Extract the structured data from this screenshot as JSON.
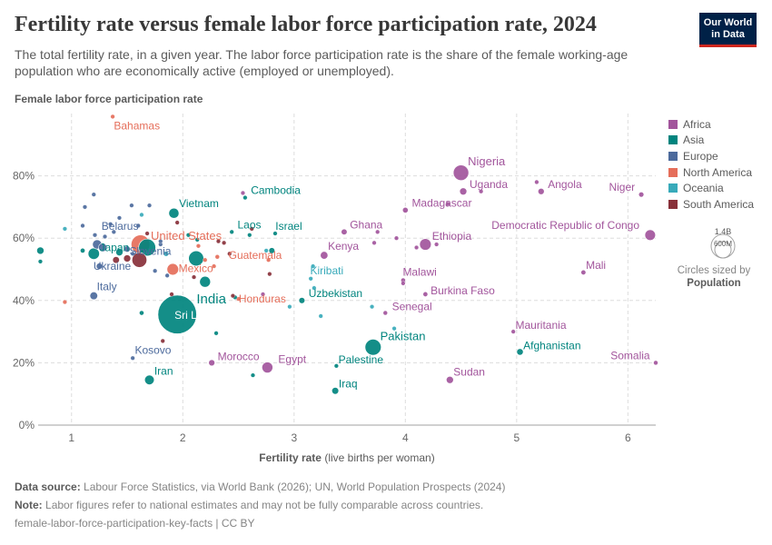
{
  "header": {
    "title": "Fertility rate versus female labor force participation rate, 2024",
    "subtitle": "The total fertility rate, in a given year. The labor force participation rate is the share of the female working-age population who are economically active (employed or unemployed).",
    "logo_line1": "Our World",
    "logo_line2": "in Data"
  },
  "legend": {
    "items": [
      {
        "label": "Africa",
        "color": "#a2559c"
      },
      {
        "label": "Asia",
        "color": "#00847e"
      },
      {
        "label": "Europe",
        "color": "#4c6a9c"
      },
      {
        "label": "North America",
        "color": "#e56e5a"
      },
      {
        "label": "Oceania",
        "color": "#38aaba"
      },
      {
        "label": "South America",
        "color": "#883039"
      }
    ],
    "size_max": "1.4B",
    "size_mid": "600M",
    "size_note": "Circles sized by",
    "size_variable": "Population"
  },
  "footer": {
    "source_label": "Data source:",
    "source": "Labour Force Statistics, via World Bank (2026); UN, World Population Prospects (2024)",
    "note_label": "Note:",
    "note": "Labor figures refer to national estimates and may not be fully comparable across countries.",
    "slug": "female-labor-force-participation-key-facts | CC BY"
  },
  "chart_data": {
    "type": "scatter",
    "xlabel": "Fertility rate (live births per woman)",
    "ylabel": "Female labor force participation rate",
    "xlim": [
      0.7,
      6.25
    ],
    "ylim": [
      0,
      100
    ],
    "xticks": [
      "1",
      "2",
      "3",
      "4",
      "5",
      "6"
    ],
    "yticks": [
      "0%",
      "20%",
      "40%",
      "60%",
      "80%"
    ],
    "grid": true,
    "legend_position": "right",
    "region_colors": {
      "Africa": "#a2559c",
      "Asia": "#00847e",
      "Europe": "#4c6a9c",
      "North America": "#e56e5a",
      "Oceania": "#38aaba",
      "South America": "#883039"
    },
    "points": [
      {
        "x": 1.37,
        "y": 99,
        "region": "North America",
        "label": "Bahamas",
        "pop": 0.4
      },
      {
        "x": 4.5,
        "y": 81,
        "region": "Africa",
        "label": "Nigeria",
        "pop": 230
      },
      {
        "x": 4.52,
        "y": 75,
        "region": "Africa",
        "label": "Uganda",
        "pop": 50
      },
      {
        "x": 5.22,
        "y": 75,
        "region": "Africa",
        "label": "Angola",
        "pop": 38
      },
      {
        "x": 6.12,
        "y": 74,
        "region": "Africa",
        "label": "Niger",
        "pop": 27
      },
      {
        "x": 2.56,
        "y": 73,
        "region": "Asia",
        "label": "Cambodia",
        "pop": 17
      },
      {
        "x": 4.0,
        "y": 69,
        "region": "Africa",
        "label": "Madagascar",
        "pop": 31
      },
      {
        "x": 1.92,
        "y": 68,
        "region": "Asia",
        "label": "Vietnam",
        "pop": 100
      },
      {
        "x": 6.2,
        "y": 61,
        "region": "Africa",
        "label": "Democratic Republic of Congo",
        "pop": 109
      },
      {
        "x": 1.21,
        "y": 61,
        "region": "Europe",
        "label": "Belarus",
        "pop": 9
      },
      {
        "x": 3.45,
        "y": 62,
        "region": "Africa",
        "label": "Ghana",
        "pop": 34
      },
      {
        "x": 2.44,
        "y": 62,
        "region": "Asia",
        "label": "Laos",
        "pop": 7.7
      },
      {
        "x": 2.83,
        "y": 61.5,
        "region": "Asia",
        "label": "Israel",
        "pop": 9.5
      },
      {
        "x": 4.18,
        "y": 58,
        "region": "Africa",
        "label": "Ethiopia",
        "pop": 130
      },
      {
        "x": 1.62,
        "y": 58,
        "region": "North America",
        "label": "United States",
        "pop": 340
      },
      {
        "x": 1.2,
        "y": 55,
        "region": "Asia",
        "label": "Japan",
        "pop": 124
      },
      {
        "x": 1.55,
        "y": 55,
        "region": "Europe",
        "label": "Slovenia",
        "pop": 2.1
      },
      {
        "x": 3.27,
        "y": 54.5,
        "region": "Africa",
        "label": "Kenya",
        "pop": 56
      },
      {
        "x": 2.31,
        "y": 54,
        "region": "North America",
        "label": "Guatemala",
        "pop": 18
      },
      {
        "x": 2.12,
        "y": 53.5,
        "region": "Asia",
        "pop": 220
      },
      {
        "x": 1.61,
        "y": 53,
        "region": "South America",
        "pop": 212
      },
      {
        "x": 5.6,
        "y": 49,
        "region": "Africa",
        "label": "Mali",
        "pop": 24
      },
      {
        "x": 1.25,
        "y": 51,
        "region": "Europe",
        "label": "Ukraine",
        "pop": 38
      },
      {
        "x": 1.91,
        "y": 50,
        "region": "North America",
        "label": "Mexico",
        "pop": 130
      },
      {
        "x": 3.15,
        "y": 47,
        "region": "Oceania",
        "label": "Kiribati",
        "pop": 0.13
      },
      {
        "x": 3.98,
        "y": 46.5,
        "region": "Africa",
        "label": "Malawi",
        "pop": 21
      },
      {
        "x": 1.2,
        "y": 41.5,
        "region": "Europe",
        "label": "Italy",
        "pop": 59
      },
      {
        "x": 4.18,
        "y": 42,
        "region": "Africa",
        "label": "Burkina Faso",
        "pop": 23
      },
      {
        "x": 2.5,
        "y": 40.5,
        "region": "North America",
        "label": "Honduras",
        "pop": 10.8
      },
      {
        "x": 3.07,
        "y": 40,
        "region": "Asia",
        "label": "Uzbekistan",
        "pop": 36
      },
      {
        "x": 1.95,
        "y": 35.5,
        "region": "Asia",
        "label": "India",
        "pop": 1440
      },
      {
        "x": 1.63,
        "y": 36,
        "region": "Asia",
        "label": "Sri Lanka",
        "pop": 22
      },
      {
        "x": 3.82,
        "y": 36,
        "region": "Africa",
        "label": "Senegal",
        "pop": 18
      },
      {
        "x": 4.97,
        "y": 30,
        "region": "Africa",
        "label": "Mauritania",
        "pop": 5
      },
      {
        "x": 3.71,
        "y": 25,
        "region": "Asia",
        "label": "Pakistan",
        "pop": 250
      },
      {
        "x": 5.03,
        "y": 23.5,
        "region": "Asia",
        "label": "Afghanistan",
        "pop": 42
      },
      {
        "x": 6.25,
        "y": 20,
        "region": "Africa",
        "label": "Somalia",
        "pop": 18
      },
      {
        "x": 2.26,
        "y": 20,
        "region": "Africa",
        "label": "Morocco",
        "pop": 38
      },
      {
        "x": 2.76,
        "y": 18.5,
        "region": "Africa",
        "label": "Egypt",
        "pop": 115
      },
      {
        "x": 3.38,
        "y": 19,
        "region": "Asia",
        "label": "Palestine",
        "pop": 5
      },
      {
        "x": 1.55,
        "y": 21.5,
        "region": "Europe",
        "label": "Kosovo",
        "pop": 1.7
      },
      {
        "x": 4.4,
        "y": 14.5,
        "region": "Africa",
        "label": "Sudan",
        "pop": 50
      },
      {
        "x": 1.7,
        "y": 14.5,
        "region": "Asia",
        "label": "Iran",
        "pop": 90
      },
      {
        "x": 3.37,
        "y": 11,
        "region": "Asia",
        "label": "Iraq",
        "pop": 46
      },
      {
        "x": 1.23,
        "y": 58,
        "region": "Europe",
        "pop": 83
      },
      {
        "x": 1.28,
        "y": 57,
        "region": "Europe",
        "pop": 68
      },
      {
        "x": 1.5,
        "y": 56.5,
        "region": "Europe",
        "pop": 38
      },
      {
        "x": 1.43,
        "y": 55.5,
        "region": "Asia",
        "pop": 51
      },
      {
        "x": 1.1,
        "y": 56,
        "region": "Asia",
        "pop": 23
      },
      {
        "x": 1.68,
        "y": 57,
        "region": "Asia",
        "pop": 280
      },
      {
        "x": 1.5,
        "y": 53.5,
        "region": "South America",
        "pop": 50
      },
      {
        "x": 1.4,
        "y": 53,
        "region": "South America",
        "pop": 45
      },
      {
        "x": 1.8,
        "y": 58,
        "region": "Europe",
        "pop": 10
      },
      {
        "x": 2.2,
        "y": 46,
        "region": "Asia",
        "pop": 114
      },
      {
        "x": 2.8,
        "y": 56,
        "region": "Asia",
        "pop": 35
      },
      {
        "x": 1.85,
        "y": 55,
        "region": "Oceania",
        "pop": 27
      },
      {
        "x": 0.72,
        "y": 56,
        "region": "Asia",
        "pop": 51
      },
      {
        "x": 0.72,
        "y": 52.5,
        "region": "Asia",
        "pop": 5.9
      },
      {
        "x": 0.94,
        "y": 63,
        "region": "Oceania",
        "pop": 3
      },
      {
        "x": 0.94,
        "y": 39.5,
        "region": "North America",
        "pop": 1
      },
      {
        "x": 1.12,
        "y": 70,
        "region": "Europe",
        "pop": 3
      },
      {
        "x": 1.2,
        "y": 74,
        "region": "Europe",
        "pop": 2
      },
      {
        "x": 1.54,
        "y": 70.5,
        "region": "Europe",
        "pop": 2
      },
      {
        "x": 1.7,
        "y": 70.5,
        "region": "Europe",
        "pop": 2
      },
      {
        "x": 1.63,
        "y": 67.5,
        "region": "Oceania",
        "pop": 2
      },
      {
        "x": 1.38,
        "y": 62,
        "region": "Europe",
        "pop": 5
      },
      {
        "x": 1.8,
        "y": 59,
        "region": "Europe",
        "pop": 5
      },
      {
        "x": 1.6,
        "y": 64,
        "region": "Europe",
        "pop": 4
      },
      {
        "x": 1.68,
        "y": 61.5,
        "region": "South America",
        "pop": 3
      },
      {
        "x": 1.35,
        "y": 64.5,
        "region": "Europe",
        "pop": 4
      },
      {
        "x": 1.1,
        "y": 64,
        "region": "Europe",
        "pop": 4
      },
      {
        "x": 1.43,
        "y": 66.5,
        "region": "Europe",
        "pop": 3
      },
      {
        "x": 1.3,
        "y": 60.5,
        "region": "Europe",
        "pop": 3
      },
      {
        "x": 1.95,
        "y": 65,
        "region": "South America",
        "pop": 3
      },
      {
        "x": 2.05,
        "y": 61,
        "region": "Asia",
        "pop": 3
      },
      {
        "x": 2.13,
        "y": 59.5,
        "region": "Asia",
        "pop": 3
      },
      {
        "x": 2.6,
        "y": 61,
        "region": "Asia",
        "pop": 3
      },
      {
        "x": 2.28,
        "y": 51,
        "region": "North America",
        "pop": 3
      },
      {
        "x": 2.2,
        "y": 53,
        "region": "North America",
        "pop": 3
      },
      {
        "x": 2.14,
        "y": 57.5,
        "region": "North America",
        "pop": 3
      },
      {
        "x": 2.1,
        "y": 47.5,
        "region": "South America",
        "pop": 6
      },
      {
        "x": 1.86,
        "y": 48,
        "region": "Europe",
        "pop": 3
      },
      {
        "x": 1.75,
        "y": 49.5,
        "region": "Europe",
        "pop": 3
      },
      {
        "x": 1.9,
        "y": 42,
        "region": "South America",
        "pop": 3
      },
      {
        "x": 1.82,
        "y": 27,
        "region": "South America",
        "pop": 3
      },
      {
        "x": 2.32,
        "y": 59,
        "region": "South America",
        "pop": 3
      },
      {
        "x": 2.37,
        "y": 58.5,
        "region": "South America",
        "pop": 3
      },
      {
        "x": 2.42,
        "y": 55,
        "region": "South America",
        "pop": 3
      },
      {
        "x": 2.78,
        "y": 48.5,
        "region": "South America",
        "pop": 3
      },
      {
        "x": 2.77,
        "y": 53,
        "region": "North America",
        "pop": 2
      },
      {
        "x": 2.75,
        "y": 56,
        "region": "Oceania",
        "pop": 2
      },
      {
        "x": 2.62,
        "y": 63,
        "region": "South America",
        "pop": 2
      },
      {
        "x": 2.54,
        "y": 74.5,
        "region": "Africa",
        "pop": 2
      },
      {
        "x": 2.47,
        "y": 41,
        "region": "Asia",
        "pop": 3
      },
      {
        "x": 2.45,
        "y": 41.5,
        "region": "South America",
        "pop": 3
      },
      {
        "x": 2.3,
        "y": 29.5,
        "region": "Asia",
        "pop": 3
      },
      {
        "x": 2.63,
        "y": 16,
        "region": "Asia",
        "pop": 3
      },
      {
        "x": 2.72,
        "y": 42,
        "region": "Africa",
        "pop": 3
      },
      {
        "x": 2.96,
        "y": 38,
        "region": "Oceania",
        "pop": 2
      },
      {
        "x": 3.24,
        "y": 35,
        "region": "Oceania",
        "pop": 2
      },
      {
        "x": 3.17,
        "y": 51,
        "region": "Oceania",
        "pop": 2
      },
      {
        "x": 3.18,
        "y": 44,
        "region": "Oceania",
        "pop": 2
      },
      {
        "x": 3.7,
        "y": 38,
        "region": "Oceania",
        "pop": 3
      },
      {
        "x": 3.9,
        "y": 31,
        "region": "Oceania",
        "pop": 3
      },
      {
        "x": 3.72,
        "y": 58.5,
        "region": "Africa",
        "pop": 3
      },
      {
        "x": 3.75,
        "y": 62,
        "region": "Africa",
        "pop": 3
      },
      {
        "x": 3.92,
        "y": 60,
        "region": "Africa",
        "pop": 3
      },
      {
        "x": 4.1,
        "y": 57,
        "region": "Africa",
        "pop": 3
      },
      {
        "x": 4.28,
        "y": 58,
        "region": "Africa",
        "pop": 3
      },
      {
        "x": 4.38,
        "y": 71,
        "region": "Africa",
        "pop": 3
      },
      {
        "x": 4.68,
        "y": 75,
        "region": "Africa",
        "pop": 3
      },
      {
        "x": 5.18,
        "y": 78,
        "region": "Africa",
        "pop": 3
      },
      {
        "x": 3.98,
        "y": 45.5,
        "region": "Africa",
        "pop": 3
      }
    ]
  }
}
